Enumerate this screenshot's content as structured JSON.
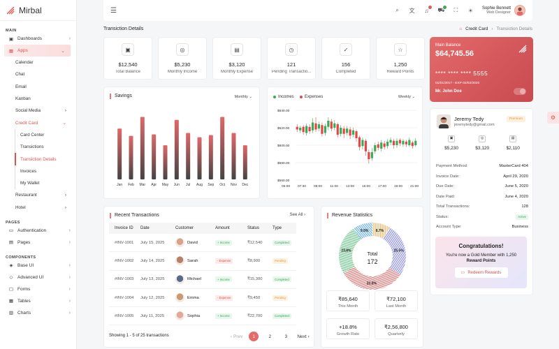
{
  "app": {
    "name": "Mirbal"
  },
  "sidebar": {
    "sections": {
      "main": "MAIN",
      "pages": "PAGES",
      "components": "COMPONENTS"
    },
    "dashboards": "Dashboards",
    "apps": "Apps",
    "apps_children": [
      "Calendar",
      "Chat",
      "Email",
      "Kanban",
      "Social Media"
    ],
    "credit_card": "Credit Card",
    "credit_children": [
      "Card Center",
      "Transictions",
      "Transiction Details",
      "Invoices",
      "My Wallet"
    ],
    "after_credit": [
      "Restaurant",
      "Hotel"
    ],
    "pages_items": [
      "Authentication",
      "Pages"
    ],
    "component_items": [
      "Base UI",
      "Advanced UI",
      "Forms",
      "Tables",
      "Charts"
    ]
  },
  "topbar": {
    "user_name": "Sophie Bennett",
    "user_role": "Web Designer"
  },
  "page": {
    "title": "Transiction Details",
    "breadcrumb_root": "Credit Card",
    "breadcrumb_current": "Transiction Details"
  },
  "stats": [
    {
      "value": "$12,540",
      "label": "Total Balance",
      "icon": "wallet-icon"
    },
    {
      "value": "$5,230",
      "label": "Monthly Income",
      "icon": "coins-icon"
    },
    {
      "value": "$3,120",
      "label": "Monthly Expense",
      "icon": "calendar-icon"
    },
    {
      "value": "121",
      "label": "Pending Transactio...",
      "icon": "timer-icon"
    },
    {
      "value": "156",
      "label": "Completed",
      "icon": "check-icon"
    },
    {
      "value": "1,250",
      "label": "Reward Points",
      "icon": "star-icon"
    }
  ],
  "bank_card": {
    "label": "Main Balance",
    "balance": "$64,745.56",
    "number": "**** **** **** 5555",
    "dates": "01/01/2017 - EXP 02/02/2020",
    "holder": "Mr. John Doe"
  },
  "savings": {
    "title": "Savings",
    "period": "Monthly",
    "colors": {
      "top": "#e06868",
      "bottom": "#444444"
    }
  },
  "candles": {
    "legend_income": "Incomes",
    "legend_expense": "Expenses",
    "period": "Weekly",
    "colors": {
      "up": "#3aaa55",
      "down": "#e04848"
    }
  },
  "chart_data": [
    {
      "type": "bar",
      "title": "Savings",
      "categories": [
        "Jan",
        "Feb",
        "Mar",
        "Apr",
        "May",
        "Jun",
        "Jul",
        "Aug",
        "Sep",
        "Oct",
        "Nov",
        "Dec"
      ],
      "values": [
        70,
        60,
        86,
        62,
        47,
        82,
        64,
        58,
        61,
        86,
        64,
        47
      ],
      "ylim": [
        0,
        100
      ]
    },
    {
      "type": "candlestick",
      "series": [
        {
          "name": "Incomes"
        },
        {
          "name": "Expenses"
        }
      ],
      "x": [
        "05:00",
        "07:30",
        "09:00",
        "11:00",
        "13:00",
        "15:00",
        "17:00",
        "19:00",
        "21:00"
      ],
      "yticks": [
        "$640.00",
        "$620.00",
        "$600.00",
        "$580.00",
        "$560.00"
      ],
      "ylim": [
        560,
        640
      ],
      "candles": [
        {
          "o": 621,
          "c": 618,
          "h": 624,
          "l": 615
        },
        {
          "o": 617,
          "c": 620,
          "h": 622,
          "l": 614
        },
        {
          "o": 621,
          "c": 615,
          "h": 623,
          "l": 612
        },
        {
          "o": 614,
          "c": 622,
          "h": 625,
          "l": 611
        },
        {
          "o": 621,
          "c": 616,
          "h": 624,
          "l": 613
        },
        {
          "o": 617,
          "c": 626,
          "h": 631,
          "l": 614
        },
        {
          "o": 625,
          "c": 618,
          "h": 632,
          "l": 615
        },
        {
          "o": 619,
          "c": 624,
          "h": 627,
          "l": 616
        },
        {
          "o": 623,
          "c": 613,
          "h": 626,
          "l": 610
        },
        {
          "o": 614,
          "c": 622,
          "h": 625,
          "l": 611
        },
        {
          "o": 621,
          "c": 628,
          "h": 632,
          "l": 617
        },
        {
          "o": 627,
          "c": 619,
          "h": 630,
          "l": 616
        },
        {
          "o": 620,
          "c": 625,
          "h": 629,
          "l": 617
        },
        {
          "o": 624,
          "c": 612,
          "h": 626,
          "l": 609
        },
        {
          "o": 613,
          "c": 620,
          "h": 623,
          "l": 610
        },
        {
          "o": 619,
          "c": 613,
          "h": 622,
          "l": 608
        },
        {
          "o": 614,
          "c": 619,
          "h": 622,
          "l": 611
        },
        {
          "o": 618,
          "c": 611,
          "h": 621,
          "l": 607
        },
        {
          "o": 612,
          "c": 617,
          "h": 620,
          "l": 609
        },
        {
          "o": 616,
          "c": 608,
          "h": 618,
          "l": 604
        },
        {
          "o": 609,
          "c": 598,
          "h": 611,
          "l": 594
        },
        {
          "o": 599,
          "c": 606,
          "h": 609,
          "l": 595
        },
        {
          "o": 605,
          "c": 593,
          "h": 607,
          "l": 588
        },
        {
          "o": 592,
          "c": 584,
          "h": 595,
          "l": 579
        },
        {
          "o": 585,
          "c": 592,
          "h": 597,
          "l": 582
        },
        {
          "o": 593,
          "c": 600,
          "h": 603,
          "l": 590
        },
        {
          "o": 601,
          "c": 597,
          "h": 604,
          "l": 594
        },
        {
          "o": 596,
          "c": 603,
          "h": 606,
          "l": 593
        },
        {
          "o": 602,
          "c": 598,
          "h": 605,
          "l": 595
        },
        {
          "o": 599,
          "c": 604,
          "h": 607,
          "l": 596
        },
        {
          "o": 603,
          "c": 606,
          "h": 609,
          "l": 600
        },
        {
          "o": 605,
          "c": 600,
          "h": 607,
          "l": 596
        },
        {
          "o": 600,
          "c": 605,
          "h": 608,
          "l": 597
        },
        {
          "o": 606,
          "c": 602,
          "h": 608,
          "l": 599
        },
        {
          "o": 601,
          "c": 605,
          "h": 607,
          "l": 598
        },
        {
          "o": 604,
          "c": 601,
          "h": 606,
          "l": 598
        },
        {
          "o": 600,
          "c": 606,
          "h": 609,
          "l": 598
        },
        {
          "o": 603,
          "c": 599,
          "h": 605,
          "l": 596
        },
        {
          "o": 600,
          "c": 605,
          "h": 608,
          "l": 598
        }
      ]
    },
    {
      "type": "pie",
      "title": "Revenue Statistics",
      "center_label": "Total",
      "center_value": "172",
      "slices": [
        {
          "label": "8.7%",
          "value": 8.7,
          "color": "#e4b96a"
        },
        {
          "label": "25.5%",
          "value": 25.5,
          "color": "#8e8ee4"
        },
        {
          "label": "32.0%",
          "value": 32.0,
          "color": "#e07474"
        },
        {
          "label": "23.8%",
          "value": 23.8,
          "color": "#6ac48a"
        },
        {
          "label": "9.5%",
          "value": 9.5,
          "color": "#6ab0e4"
        }
      ]
    }
  ],
  "profile": {
    "name": "Jeremy Tedy",
    "email": "jeremytedy@gmail.com",
    "badge": "Premium",
    "mini_stats": [
      "$5,230",
      "$3,120",
      "$2,110"
    ],
    "rows": [
      {
        "k": "Payment Method:",
        "v": "MasterCard 404"
      },
      {
        "k": "Invoice Date:",
        "v": "April 29, 2020"
      },
      {
        "k": "Due Date:",
        "v": "June 5, 2020"
      },
      {
        "k": "Date Paid:",
        "v": "June 4, 2020"
      },
      {
        "k": "Total Transactions:",
        "v": "128"
      },
      {
        "k": "Status:",
        "v": "Active"
      },
      {
        "k": "Account Type:",
        "v": "Business"
      }
    ]
  },
  "congrats": {
    "title": "Congratulations!",
    "line1": "You're now a Gold Member with 1,250",
    "line2": "Reward Points",
    "button": "Redeem Rewards"
  },
  "transactions": {
    "title": "Recent Transactions",
    "see_all": "See All",
    "headers": [
      "Invoice ID",
      "Date",
      "Customer",
      "Amount",
      "Status",
      "Type"
    ],
    "rows": [
      {
        "id": "#INV-1001",
        "date": "July 15, 2025",
        "customer": "David",
        "amount_tag": "+ Income",
        "amount_kind": "in",
        "status": "₹12,540",
        "type": "Completed",
        "type_kind": "c",
        "face": "#d9a38a"
      },
      {
        "id": "#INV-1002",
        "date": "July 14, 2025",
        "customer": "Sarah",
        "amount_tag": "- Expense",
        "amount_kind": "ex",
        "status": "₹8,900",
        "type": "Pending",
        "type_kind": "p",
        "face": "#b58069"
      },
      {
        "id": "#INV-1003",
        "date": "July 13, 2025",
        "customer": "Michael",
        "amount_tag": "+ Income",
        "amount_kind": "in",
        "status": "₹15,300",
        "type": "Completed",
        "type_kind": "c",
        "face": "#5a6a8a"
      },
      {
        "id": "#INV-1004",
        "date": "July 12, 2025",
        "customer": "Emma",
        "amount_tag": "- Expense",
        "amount_kind": "ex",
        "status": "₹9,450",
        "type": "Pending",
        "type_kind": "p",
        "face": "#c99a70"
      },
      {
        "id": "#INV-1005",
        "date": "July 11, 2025",
        "customer": "Sophia",
        "amount_tag": "+ Income",
        "amount_kind": "in",
        "status": "₹22,700",
        "type": "Completed",
        "type_kind": "c",
        "face": "#e3a89a"
      }
    ],
    "footer": "Showing 1 - 5 of 25 transactions",
    "prev": "Prev",
    "pages": [
      "1",
      "2",
      "3"
    ],
    "next": "Next"
  },
  "revenue": {
    "title": "Revenue Statistics",
    "boxes": [
      {
        "v": "₹85,640",
        "l": "This Month"
      },
      {
        "v": "₹72,100",
        "l": "Last Month"
      },
      {
        "v": "+18.8%",
        "l": "Growth Rate"
      },
      {
        "v": "₹2,56,800",
        "l": "Quarterly"
      }
    ]
  }
}
